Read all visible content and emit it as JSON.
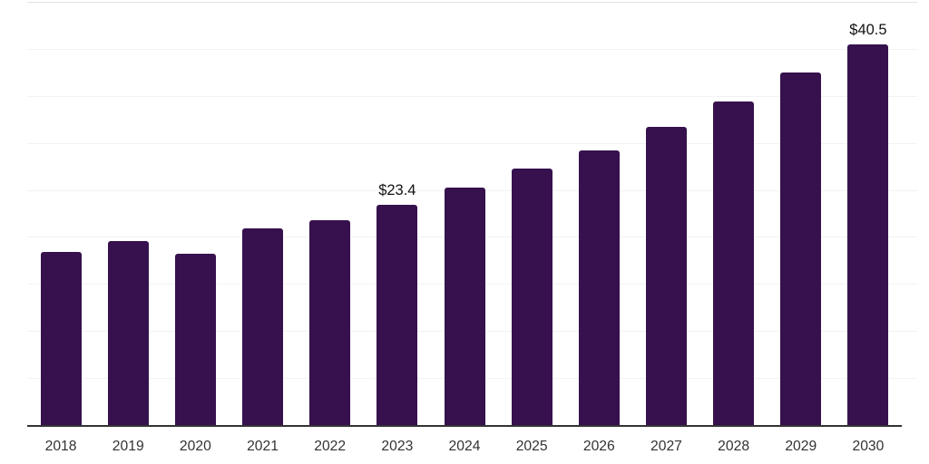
{
  "chart_data": {
    "type": "bar",
    "title": "",
    "xlabel": "",
    "ylabel": "",
    "categories": [
      "2018",
      "2019",
      "2020",
      "2021",
      "2022",
      "2023",
      "2024",
      "2025",
      "2026",
      "2027",
      "2028",
      "2029",
      "2030"
    ],
    "values": [
      18.4,
      19.6,
      18.2,
      20.9,
      21.8,
      23.4,
      25.2,
      27.3,
      29.2,
      31.7,
      34.4,
      37.5,
      40.5
    ],
    "data_labels": [
      null,
      null,
      null,
      null,
      null,
      "$23.4",
      null,
      null,
      null,
      null,
      null,
      null,
      "$40.5"
    ],
    "ylim": [
      0,
      45
    ],
    "grid_interval": 5,
    "grid": "horizontal-only",
    "legend": "none",
    "colors": {
      "bar": "#36114E",
      "data_label_text": "#111111",
      "tick_label_text": "#333333",
      "gridline": "#f2f2f2",
      "top_gridline": "#e4e4e4",
      "axis_line": "#333333",
      "background": "#ffffff"
    }
  }
}
